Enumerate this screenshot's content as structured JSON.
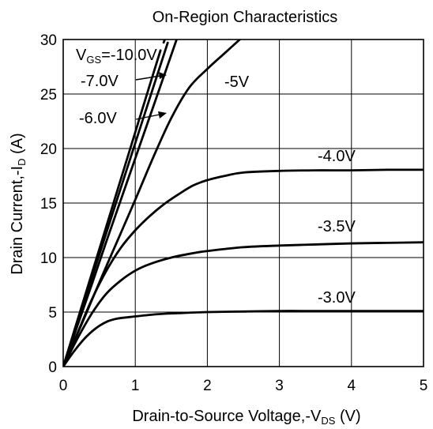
{
  "chart_data": {
    "type": "line",
    "title": "On-Region Characteristics",
    "xlabel": {
      "main": "Drain-to-Source Voltage,-V",
      "sub": "DS",
      "tail": " (V)"
    },
    "ylabel": {
      "main": "Drain Current,-I",
      "sub": "D",
      "tail": " (A)"
    },
    "xlim": [
      0,
      5
    ],
    "ylim": [
      0,
      30
    ],
    "xticks": [
      "0",
      "1",
      "2",
      "3",
      "4",
      "5"
    ],
    "yticks": [
      "0",
      "5",
      "10",
      "15",
      "20",
      "25",
      "30"
    ],
    "grid": true,
    "series": [
      {
        "name": "-10.0V",
        "style": "dashed-end",
        "x": [
          0,
          0.2,
          0.4,
          0.6,
          0.8,
          1.0,
          1.2,
          1.35
        ],
        "y": [
          0,
          4.3,
          8.6,
          12.9,
          17.2,
          21.5,
          25.8,
          29.0
        ]
      },
      {
        "name": "-7.0V",
        "x": [
          0,
          0.2,
          0.4,
          0.6,
          0.8,
          1.0,
          1.2,
          1.45
        ],
        "y": [
          0,
          4.1,
          8.2,
          12.3,
          16.4,
          20.5,
          24.6,
          29.7
        ]
      },
      {
        "name": "-6.0V",
        "x": [
          0,
          0.2,
          0.4,
          0.6,
          0.8,
          1.0,
          1.2,
          1.4,
          1.6,
          1.9
        ],
        "y": [
          0,
          3.8,
          7.6,
          11.5,
          15.3,
          19.1,
          22.9,
          26.7,
          30.5,
          36.2
        ]
      },
      {
        "name": "-5V",
        "x": [
          0,
          0.25,
          0.5,
          0.75,
          1.0,
          1.25,
          1.5,
          1.75,
          2.0,
          2.25,
          2.5
        ],
        "y": [
          0,
          3.8,
          7.7,
          11.5,
          15.3,
          19.2,
          22.8,
          25.6,
          27.3,
          28.8,
          30.3
        ]
      },
      {
        "name": "-4.0V",
        "x": [
          0,
          0.2,
          0.4,
          0.6,
          0.8,
          1.0,
          1.2,
          1.4,
          1.6,
          1.8,
          2.0,
          2.25,
          2.5,
          3.0,
          3.5,
          4.0,
          4.5,
          5.0
        ],
        "y": [
          0,
          3.1,
          6.2,
          8.8,
          10.9,
          12.5,
          13.8,
          14.9,
          15.8,
          16.6,
          17.1,
          17.5,
          17.8,
          17.95,
          18.0,
          18.0,
          18.05,
          18.05
        ]
      },
      {
        "name": "-3.5V",
        "x": [
          0,
          0.2,
          0.4,
          0.6,
          0.8,
          1.0,
          1.2,
          1.5,
          1.8,
          2.0,
          2.5,
          3.0,
          3.5,
          4.0,
          4.5,
          5.0
        ],
        "y": [
          0,
          2.6,
          4.9,
          6.7,
          7.9,
          8.8,
          9.4,
          10.0,
          10.4,
          10.6,
          10.95,
          11.1,
          11.2,
          11.3,
          11.35,
          11.4
        ]
      },
      {
        "name": "-3.0V",
        "x": [
          0,
          0.15,
          0.3,
          0.45,
          0.6,
          0.75,
          1.0,
          1.3,
          1.6,
          2.0,
          2.5,
          3.0,
          3.5,
          4.0,
          4.5,
          5.0
        ],
        "y": [
          0,
          1.4,
          2.6,
          3.5,
          4.1,
          4.4,
          4.6,
          4.8,
          4.9,
          5.0,
          5.05,
          5.1,
          5.1,
          5.1,
          5.1,
          5.1
        ]
      }
    ],
    "annotations": {
      "vgs": {
        "prefix": "V",
        "sub": "GS",
        "value": "=-10.0V"
      },
      "v7": "-7.0V",
      "v6": "-6.0V",
      "v5": "-5V",
      "v4": "-4.0V",
      "v35": "-3.5V",
      "v3": "-3.0V"
    }
  }
}
